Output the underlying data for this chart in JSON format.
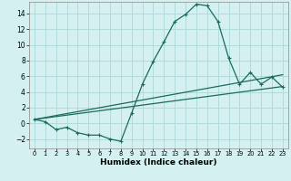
{
  "xlabel": "Humidex (Indice chaleur)",
  "background_color": "#d4f0f0",
  "grid_color": "#aed8d8",
  "line_color": "#1a6b5a",
  "xlim": [
    -0.5,
    23.5
  ],
  "ylim": [
    -3.2,
    15.5
  ],
  "xticks": [
    0,
    1,
    2,
    3,
    4,
    5,
    6,
    7,
    8,
    9,
    10,
    11,
    12,
    13,
    14,
    15,
    16,
    17,
    18,
    19,
    20,
    21,
    22,
    23
  ],
  "yticks": [
    -2,
    0,
    2,
    4,
    6,
    8,
    10,
    12,
    14
  ],
  "series1_x": [
    0,
    1,
    2,
    3,
    4,
    5,
    6,
    7,
    8,
    9,
    10,
    11,
    12,
    13,
    14,
    15,
    16,
    17,
    18,
    19,
    20,
    21,
    22,
    23
  ],
  "series1_y": [
    0.5,
    0.2,
    -0.8,
    -0.5,
    -1.2,
    -1.5,
    -1.5,
    -2.0,
    -2.3,
    1.3,
    5.0,
    7.9,
    10.4,
    13.0,
    13.9,
    15.2,
    15.0,
    13.0,
    8.3,
    5.0,
    6.5,
    5.0,
    5.9,
    4.6
  ],
  "series2_x": [
    0,
    23
  ],
  "series2_y": [
    0.5,
    4.7
  ],
  "series3_x": [
    0,
    23
  ],
  "series3_y": [
    0.5,
    6.2
  ],
  "xlabel_fontsize": 6.5,
  "xlabel_fontweight": "bold",
  "ytick_fontsize": 5.5,
  "xtick_fontsize": 4.8
}
